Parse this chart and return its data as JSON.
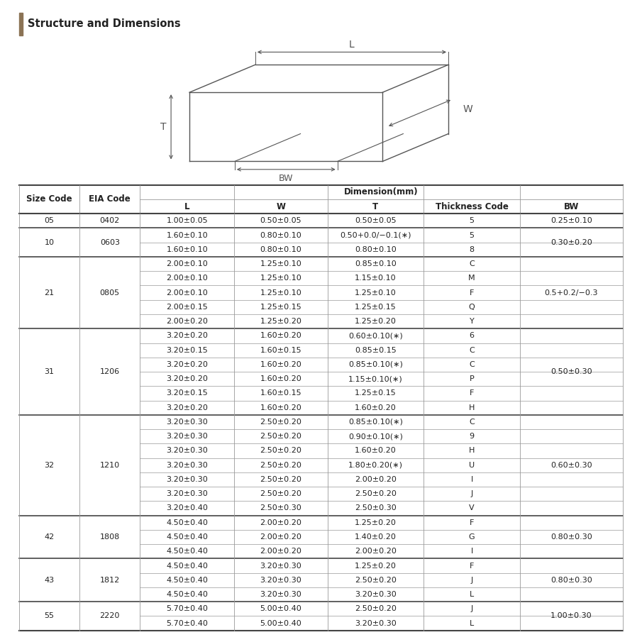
{
  "title": "Structure and Dimensions",
  "title_bar_color": "#d4cfc8",
  "title_accent_color": "#8b7355",
  "header1": "Size Code",
  "header2": "EIA Code",
  "dim_header": "Dimension(mm)",
  "col_headers": [
    "L",
    "W",
    "T",
    "Thickness Code",
    "BW"
  ],
  "groups": [
    {
      "size_code": "05",
      "eia_code": "0402",
      "rows": [
        [
          "1.00±0.05",
          "0.50±0.05",
          "0.50±0.05",
          "5",
          "0.25±0.10"
        ]
      ]
    },
    {
      "size_code": "10",
      "eia_code": "0603",
      "rows": [
        [
          "1.60±0.10",
          "0.80±0.10",
          "0.50+0.0/−0.1(∗)",
          "5",
          ""
        ],
        [
          "1.60±0.10",
          "0.80±0.10",
          "0.80±0.10",
          "8",
          "0.30±0.20"
        ]
      ]
    },
    {
      "size_code": "21",
      "eia_code": "0805",
      "rows": [
        [
          "2.00±0.10",
          "1.25±0.10",
          "0.85±0.10",
          "C",
          ""
        ],
        [
          "2.00±0.10",
          "1.25±0.10",
          "1.15±0.10",
          "M",
          ""
        ],
        [
          "2.00±0.10",
          "1.25±0.10",
          "1.25±0.10",
          "F",
          "0.5+0.2/−0.3"
        ],
        [
          "2.00±0.15",
          "1.25±0.15",
          "1.25±0.15",
          "Q",
          ""
        ],
        [
          "2.00±0.20",
          "1.25±0.20",
          "1.25±0.20",
          "Y",
          ""
        ]
      ]
    },
    {
      "size_code": "31",
      "eia_code": "1206",
      "rows": [
        [
          "3.20±0.20",
          "1.60±0.20",
          "0.60±0.10(∗)",
          "6",
          ""
        ],
        [
          "3.20±0.15",
          "1.60±0.15",
          "0.85±0.15",
          "C",
          ""
        ],
        [
          "3.20±0.20",
          "1.60±0.20",
          "0.85±0.10(∗)",
          "C",
          "0.50±0.30"
        ],
        [
          "3.20±0.20",
          "1.60±0.20",
          "1.15±0.10(∗)",
          "P",
          ""
        ],
        [
          "3.20±0.15",
          "1.60±0.15",
          "1.25±0.15",
          "F",
          ""
        ],
        [
          "3.20±0.20",
          "1.60±0.20",
          "1.60±0.20",
          "H",
          ""
        ]
      ]
    },
    {
      "size_code": "32",
      "eia_code": "1210",
      "rows": [
        [
          "3.20±0.30",
          "2.50±0.20",
          "0.85±0.10(∗)",
          "C",
          ""
        ],
        [
          "3.20±0.30",
          "2.50±0.20",
          "0.90±0.10(∗)",
          "9",
          ""
        ],
        [
          "3.20±0.30",
          "2.50±0.20",
          "1.60±0.20",
          "H",
          ""
        ],
        [
          "3.20±0.30",
          "2.50±0.20",
          "1.80±0.20(∗)",
          "U",
          "0.60±0.30"
        ],
        [
          "3.20±0.30",
          "2.50±0.20",
          "2.00±0.20",
          "I",
          ""
        ],
        [
          "3.20±0.30",
          "2.50±0.20",
          "2.50±0.20",
          "J",
          ""
        ],
        [
          "3.20±0.40",
          "2.50±0.30",
          "2.50±0.30",
          "V",
          ""
        ]
      ]
    },
    {
      "size_code": "42",
      "eia_code": "1808",
      "rows": [
        [
          "4.50±0.40",
          "2.00±0.20",
          "1.25±0.20",
          "F",
          ""
        ],
        [
          "4.50±0.40",
          "2.00±0.20",
          "1.40±0.20",
          "G",
          "0.80±0.30"
        ],
        [
          "4.50±0.40",
          "2.00±0.20",
          "2.00±0.20",
          "I",
          ""
        ]
      ]
    },
    {
      "size_code": "43",
      "eia_code": "1812",
      "rows": [
        [
          "4.50±0.40",
          "3.20±0.30",
          "1.25±0.20",
          "F",
          ""
        ],
        [
          "4.50±0.40",
          "3.20±0.30",
          "2.50±0.20",
          "J",
          "0.80±0.30"
        ],
        [
          "4.50±0.40",
          "3.20±0.30",
          "3.20±0.30",
          "L",
          ""
        ]
      ]
    },
    {
      "size_code": "55",
      "eia_code": "2220",
      "rows": [
        [
          "5.70±0.40",
          "5.00±0.40",
          "2.50±0.20",
          "J",
          ""
        ],
        [
          "5.70±0.40",
          "5.00±0.40",
          "3.20±0.30",
          "L",
          "1.00±0.30"
        ]
      ]
    }
  ],
  "bg_color": "#ffffff",
  "line_color": "#999999",
  "thick_line_color": "#444444",
  "text_color": "#222222",
  "font_size": 8.0,
  "header_font_size": 8.5
}
